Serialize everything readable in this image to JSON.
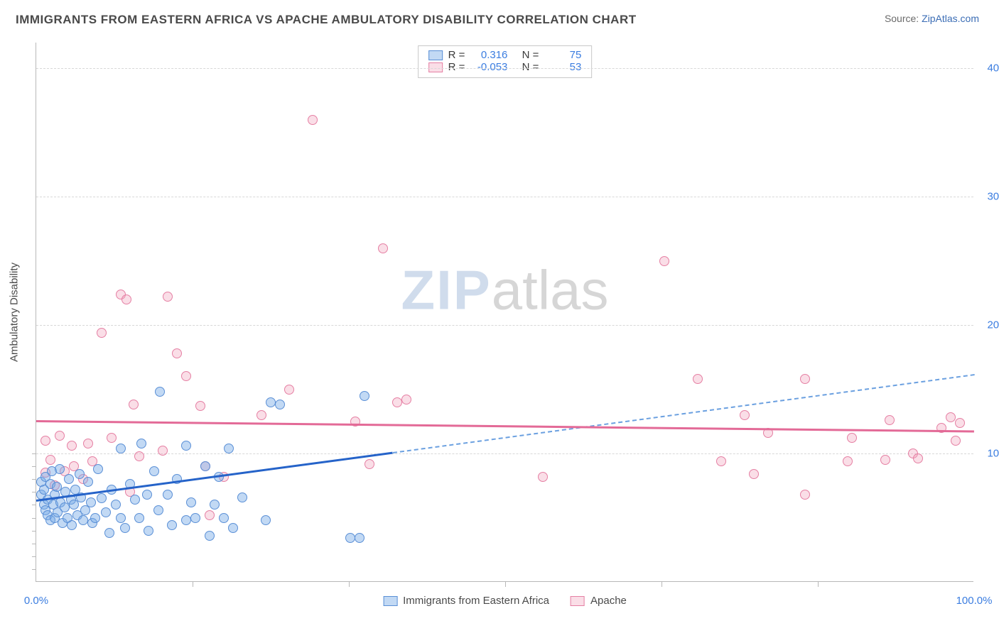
{
  "header": {
    "title": "IMMIGRANTS FROM EASTERN AFRICA VS APACHE AMBULATORY DISABILITY CORRELATION CHART",
    "source_prefix": "Source: ",
    "source_link": "ZipAtlas.com"
  },
  "watermark": {
    "zip": "ZIP",
    "atlas": "atlas"
  },
  "axes": {
    "y_title": "Ambulatory Disability",
    "x_min": 0,
    "x_max": 100,
    "y_min": 0,
    "y_max": 42,
    "y_ticks": [
      {
        "v": 10,
        "label": "10.0%"
      },
      {
        "v": 20,
        "label": "20.0%"
      },
      {
        "v": 30,
        "label": "30.0%"
      },
      {
        "v": 40,
        "label": "40.0%"
      }
    ],
    "x_ticks_minor": [
      16.67,
      33.33,
      50,
      66.67,
      83.33
    ],
    "x_labels": [
      {
        "v": 0,
        "label": "0.0%"
      },
      {
        "v": 100,
        "label": "100.0%"
      }
    ]
  },
  "legend_stats": {
    "series": [
      {
        "color_key": "s1",
        "R_label": "R =",
        "R": "0.316",
        "N_label": "N =",
        "N": "75"
      },
      {
        "color_key": "s2",
        "R_label": "R =",
        "R": "-0.053",
        "N_label": "N =",
        "N": "53"
      }
    ]
  },
  "legend_bottom": {
    "s1_label": "Immigrants from Eastern Africa",
    "s2_label": "Apache"
  },
  "colors": {
    "s1_fill": "rgba(120,170,230,0.45)",
    "s1_stroke": "#5a8fd6",
    "s1_line": "#2563c9",
    "s2_fill": "rgba(240,160,185,0.35)",
    "s2_stroke": "#e57fa3",
    "s2_line": "#e36a97",
    "grid": "#d8d8d8",
    "axis": "#b8b8b8",
    "tick_text": "#3b7de0",
    "text": "#4a4a4a"
  },
  "trend_lines": {
    "s1": {
      "x1": 0,
      "y1": 6.4,
      "x_solid_end": 38,
      "x2": 100,
      "y2": 16.2
    },
    "s2": {
      "x1": 0,
      "y1": 12.6,
      "x2": 100,
      "y2": 11.8
    }
  },
  "series": {
    "s1": [
      [
        0.5,
        7.8
      ],
      [
        0.5,
        6.8
      ],
      [
        0.8,
        6.0
      ],
      [
        0.8,
        7.2
      ],
      [
        1.0,
        5.6
      ],
      [
        1.0,
        8.2
      ],
      [
        1.2,
        6.4
      ],
      [
        1.2,
        5.2
      ],
      [
        1.5,
        7.6
      ],
      [
        1.5,
        4.8
      ],
      [
        1.7,
        8.6
      ],
      [
        1.8,
        6.0
      ],
      [
        2.0,
        5.0
      ],
      [
        2.0,
        6.8
      ],
      [
        2.2,
        7.4
      ],
      [
        2.3,
        5.4
      ],
      [
        2.5,
        8.8
      ],
      [
        2.6,
        6.2
      ],
      [
        2.8,
        4.6
      ],
      [
        3.0,
        5.8
      ],
      [
        3.1,
        7.0
      ],
      [
        3.3,
        5.0
      ],
      [
        3.5,
        8.0
      ],
      [
        3.7,
        6.4
      ],
      [
        3.8,
        4.4
      ],
      [
        4.0,
        6.0
      ],
      [
        4.2,
        7.2
      ],
      [
        4.4,
        5.2
      ],
      [
        4.6,
        8.4
      ],
      [
        4.8,
        6.6
      ],
      [
        5.0,
        4.8
      ],
      [
        5.2,
        5.6
      ],
      [
        5.5,
        7.8
      ],
      [
        5.8,
        6.2
      ],
      [
        6.0,
        4.6
      ],
      [
        6.3,
        5.0
      ],
      [
        6.6,
        8.8
      ],
      [
        7.0,
        6.5
      ],
      [
        7.4,
        5.4
      ],
      [
        7.8,
        3.8
      ],
      [
        8.0,
        7.2
      ],
      [
        8.5,
        6.0
      ],
      [
        9.0,
        5.0
      ],
      [
        9.0,
        10.4
      ],
      [
        9.5,
        4.2
      ],
      [
        10.0,
        7.6
      ],
      [
        10.5,
        6.4
      ],
      [
        11.0,
        5.0
      ],
      [
        11.2,
        10.8
      ],
      [
        11.8,
        6.8
      ],
      [
        12.0,
        4.0
      ],
      [
        12.6,
        8.6
      ],
      [
        13.0,
        5.6
      ],
      [
        13.2,
        14.8
      ],
      [
        14.0,
        6.8
      ],
      [
        14.5,
        4.4
      ],
      [
        15.0,
        8.0
      ],
      [
        16.0,
        10.6
      ],
      [
        16.0,
        4.8
      ],
      [
        16.5,
        6.2
      ],
      [
        17.0,
        5.0
      ],
      [
        18.0,
        9.0
      ],
      [
        18.5,
        3.6
      ],
      [
        19.0,
        6.0
      ],
      [
        19.5,
        8.2
      ],
      [
        20.0,
        5.0
      ],
      [
        20.5,
        10.4
      ],
      [
        21.0,
        4.2
      ],
      [
        22.0,
        6.6
      ],
      [
        24.5,
        4.8
      ],
      [
        25.0,
        14.0
      ],
      [
        26.0,
        13.8
      ],
      [
        33.5,
        3.4
      ],
      [
        34.5,
        3.4
      ],
      [
        35.0,
        14.5
      ]
    ],
    "s2": [
      [
        1.0,
        8.5
      ],
      [
        1.0,
        11.0
      ],
      [
        1.5,
        9.5
      ],
      [
        2.0,
        7.5
      ],
      [
        2.5,
        11.4
      ],
      [
        3.0,
        8.6
      ],
      [
        3.8,
        10.6
      ],
      [
        4.0,
        9.0
      ],
      [
        5.0,
        8.0
      ],
      [
        5.5,
        10.8
      ],
      [
        6.0,
        9.4
      ],
      [
        7.0,
        19.4
      ],
      [
        8.0,
        11.2
      ],
      [
        9.0,
        22.4
      ],
      [
        9.6,
        22.0
      ],
      [
        10.0,
        7.0
      ],
      [
        10.4,
        13.8
      ],
      [
        11.0,
        9.8
      ],
      [
        13.5,
        10.2
      ],
      [
        14.0,
        22.2
      ],
      [
        15.0,
        17.8
      ],
      [
        16.0,
        16.0
      ],
      [
        17.5,
        13.7
      ],
      [
        18.0,
        9.0
      ],
      [
        18.5,
        5.2
      ],
      [
        20.0,
        8.2
      ],
      [
        24.0,
        13.0
      ],
      [
        27.0,
        15.0
      ],
      [
        29.5,
        36.0
      ],
      [
        34.0,
        12.5
      ],
      [
        35.5,
        9.2
      ],
      [
        37.0,
        26.0
      ],
      [
        38.5,
        14.0
      ],
      [
        39.5,
        14.2
      ],
      [
        54.0,
        8.2
      ],
      [
        67.0,
        25.0
      ],
      [
        70.5,
        15.8
      ],
      [
        73.0,
        9.4
      ],
      [
        75.5,
        13.0
      ],
      [
        76.5,
        8.4
      ],
      [
        78.0,
        11.6
      ],
      [
        82.0,
        15.8
      ],
      [
        82.0,
        6.8
      ],
      [
        86.5,
        9.4
      ],
      [
        87.0,
        11.2
      ],
      [
        90.5,
        9.5
      ],
      [
        91.0,
        12.6
      ],
      [
        93.5,
        10.0
      ],
      [
        94.0,
        9.6
      ],
      [
        96.5,
        12.0
      ],
      [
        97.5,
        12.8
      ],
      [
        98.0,
        11.0
      ],
      [
        98.5,
        12.4
      ]
    ]
  }
}
